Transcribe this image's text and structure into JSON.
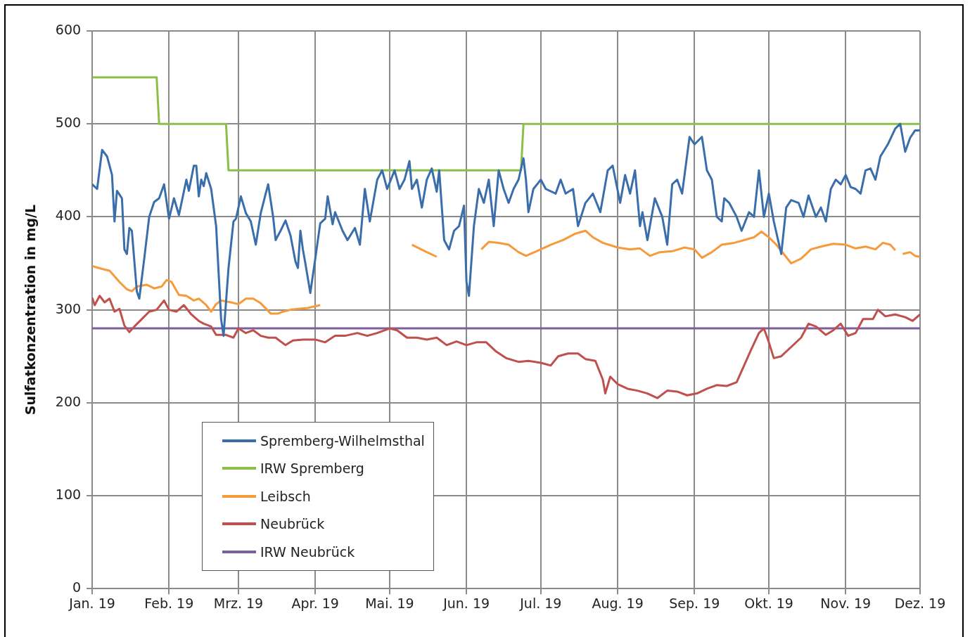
{
  "chart_data": {
    "type": "line",
    "ylabel": "Sulfatkonzentration in mg/L",
    "xlim": [
      "2019-01-01",
      "2019-12-01"
    ],
    "xticks": [
      {
        "value": "2019-01-01",
        "label": "Jan. 19"
      },
      {
        "value": "2019-02-01",
        "label": "Feb. 19"
      },
      {
        "value": "2019-03-01",
        "label": "Mrz. 19"
      },
      {
        "value": "2019-04-01",
        "label": "Apr. 19"
      },
      {
        "value": "2019-05-01",
        "label": "Mai. 19"
      },
      {
        "value": "2019-06-01",
        "label": "Jun. 19"
      },
      {
        "value": "2019-07-01",
        "label": "Jul. 19"
      },
      {
        "value": "2019-08-01",
        "label": "Aug. 19"
      },
      {
        "value": "2019-09-01",
        "label": "Sep. 19"
      },
      {
        "value": "2019-10-01",
        "label": "Okt. 19"
      },
      {
        "value": "2019-11-01",
        "label": "Nov. 19"
      },
      {
        "value": "2019-12-01",
        "label": "Dez. 19"
      }
    ],
    "ylim": [
      0,
      600
    ],
    "yticks": [
      0,
      100,
      200,
      300,
      400,
      500,
      600
    ],
    "grid": true,
    "legend": "bottom left",
    "marker": "none",
    "line_style": "solid",
    "series": [
      {
        "name": "Spremberg-Wilhelmsthal",
        "color": "#3a6eab",
        "x": [
          "2019-01-01",
          "2019-01-03",
          "2019-01-05",
          "2019-01-07",
          "2019-01-09",
          "2019-01-10",
          "2019-01-11",
          "2019-01-13",
          "2019-01-14",
          "2019-01-15",
          "2019-01-16",
          "2019-01-17",
          "2019-01-19",
          "2019-01-20",
          "2019-01-22",
          "2019-01-24",
          "2019-01-26",
          "2019-01-28",
          "2019-01-30",
          "2019-02-01",
          "2019-02-03",
          "2019-02-05",
          "2019-02-08",
          "2019-02-09",
          "2019-02-11",
          "2019-02-12",
          "2019-02-13",
          "2019-02-14",
          "2019-02-15",
          "2019-02-16",
          "2019-02-18",
          "2019-02-20",
          "2019-02-22",
          "2019-02-23",
          "2019-02-25",
          "2019-02-27",
          "2019-02-28",
          "2019-03-02",
          "2019-03-04",
          "2019-03-06",
          "2019-03-08",
          "2019-03-10",
          "2019-03-12",
          "2019-03-13",
          "2019-03-15",
          "2019-03-16",
          "2019-03-18",
          "2019-03-20",
          "2019-03-22",
          "2019-03-24",
          "2019-03-25",
          "2019-03-26",
          "2019-03-27",
          "2019-03-28",
          "2019-03-30",
          "2019-04-01",
          "2019-04-03",
          "2019-04-05",
          "2019-04-06",
          "2019-04-08",
          "2019-04-09",
          "2019-04-12",
          "2019-04-14",
          "2019-04-17",
          "2019-04-19",
          "2019-04-21",
          "2019-04-23",
          "2019-04-26",
          "2019-04-28",
          "2019-04-30",
          "2019-05-03",
          "2019-05-05",
          "2019-05-07",
          "2019-05-09",
          "2019-05-10",
          "2019-05-12",
          "2019-05-14",
          "2019-05-16",
          "2019-05-18",
          "2019-05-20",
          "2019-05-21",
          "2019-05-23",
          "2019-05-25",
          "2019-05-27",
          "2019-05-29",
          "2019-05-31",
          "2019-06-01",
          "2019-06-02",
          "2019-06-04",
          "2019-06-06",
          "2019-06-08",
          "2019-06-10",
          "2019-06-12",
          "2019-06-14",
          "2019-06-16",
          "2019-06-18",
          "2019-06-20",
          "2019-06-22",
          "2019-06-24",
          "2019-06-25",
          "2019-06-26",
          "2019-06-28",
          "2019-07-01",
          "2019-07-03",
          "2019-07-07",
          "2019-07-09",
          "2019-07-11",
          "2019-07-14",
          "2019-07-16",
          "2019-07-19",
          "2019-07-22",
          "2019-07-25",
          "2019-07-28",
          "2019-07-30",
          "2019-08-02",
          "2019-08-04",
          "2019-08-06",
          "2019-08-08",
          "2019-08-10",
          "2019-08-11",
          "2019-08-13",
          "2019-08-16",
          "2019-08-19",
          "2019-08-21",
          "2019-08-23",
          "2019-08-25",
          "2019-08-27",
          "2019-08-30",
          "2019-09-01",
          "2019-09-04",
          "2019-09-06",
          "2019-09-08",
          "2019-09-10",
          "2019-09-12",
          "2019-09-13",
          "2019-09-15",
          "2019-09-18",
          "2019-09-20",
          "2019-09-23",
          "2019-09-25",
          "2019-09-27",
          "2019-09-29",
          "2019-10-01",
          "2019-10-03",
          "2019-10-06",
          "2019-10-08",
          "2019-10-10",
          "2019-10-13",
          "2019-10-15",
          "2019-10-17",
          "2019-10-20",
          "2019-10-22",
          "2019-10-24",
          "2019-10-26",
          "2019-10-28",
          "2019-10-30",
          "2019-11-01",
          "2019-11-03",
          "2019-11-05",
          "2019-11-07",
          "2019-11-09",
          "2019-11-11",
          "2019-11-13",
          "2019-11-15",
          "2019-11-18",
          "2019-11-21",
          "2019-11-23",
          "2019-11-25",
          "2019-11-27",
          "2019-11-29",
          "2019-12-01"
        ],
        "values": [
          435,
          430,
          472,
          465,
          445,
          395,
          428,
          420,
          365,
          360,
          388,
          385,
          320,
          312,
          355,
          400,
          416,
          420,
          435,
          398,
          420,
          402,
          440,
          428,
          455,
          455,
          422,
          440,
          433,
          447,
          430,
          390,
          290,
          272,
          345,
          395,
          398,
          422,
          404,
          395,
          370,
          404,
          425,
          435,
          400,
          375,
          385,
          396,
          380,
          352,
          345,
          385,
          365,
          350,
          318,
          355,
          393,
          398,
          422,
          392,
          405,
          385,
          375,
          388,
          370,
          430,
          395,
          440,
          450,
          430,
          450,
          430,
          440,
          460,
          430,
          440,
          410,
          440,
          452,
          427,
          450,
          375,
          365,
          385,
          390,
          412,
          330,
          315,
          390,
          430,
          415,
          440,
          390,
          450,
          430,
          415,
          430,
          440,
          463,
          440,
          405,
          430,
          440,
          430,
          425,
          440,
          425,
          430,
          390,
          415,
          425,
          405,
          450,
          455,
          415,
          445,
          425,
          450,
          390,
          405,
          375,
          420,
          400,
          370,
          435,
          440,
          425,
          486,
          478,
          486,
          450,
          440,
          400,
          395,
          420,
          415,
          400,
          385,
          405,
          400,
          450,
          400,
          425,
          395,
          360,
          410,
          418,
          415,
          400,
          423,
          400,
          410,
          395,
          430,
          440,
          435,
          445,
          432,
          430,
          425,
          450,
          452,
          440,
          465,
          478,
          495,
          500,
          470,
          485,
          493,
          493
        ]
      },
      {
        "name": "IRW Spremberg",
        "color": "#8cbf4a",
        "x": [
          "2019-01-01",
          "2019-01-27",
          "2019-01-28",
          "2019-02-24",
          "2019-02-25",
          "2019-06-23",
          "2019-06-24",
          "2019-12-01"
        ],
        "values": [
          550,
          550,
          500,
          500,
          450,
          450,
          500,
          500
        ]
      },
      {
        "name": "Leibsch",
        "color": "#f79a3c",
        "x": [
          "2019-01-01",
          "2019-01-05",
          "2019-01-08",
          "2019-01-12",
          "2019-01-15",
          "2019-01-17",
          "2019-01-19",
          "2019-01-23",
          "2019-01-26",
          "2019-01-29",
          "2019-01-31",
          "2019-02-02",
          "2019-02-05",
          "2019-02-08",
          "2019-02-11",
          "2019-02-13",
          "2019-02-16",
          "2019-02-18",
          "2019-02-20",
          "2019-02-22",
          "2019-02-26",
          "2019-03-01",
          "2019-03-04",
          "2019-03-07",
          "2019-03-10",
          "2019-03-14",
          "2019-03-17",
          "2019-03-19",
          "2019-03-22",
          "2019-03-25",
          "2019-03-29",
          "2019-04-03",
          "2019-04-20",
          "2019-05-10",
          "2019-05-13",
          "2019-05-16",
          "2019-05-20",
          "2019-06-01",
          "2019-06-07",
          "2019-06-10",
          "2019-06-14",
          "2019-06-18",
          "2019-06-22",
          "2019-06-25",
          "2019-07-01",
          "2019-07-05",
          "2019-07-10",
          "2019-07-15",
          "2019-07-19",
          "2019-07-22",
          "2019-07-26",
          "2019-08-01",
          "2019-08-06",
          "2019-08-10",
          "2019-08-14",
          "2019-08-18",
          "2019-08-23",
          "2019-08-28",
          "2019-09-01",
          "2019-09-04",
          "2019-09-08",
          "2019-09-12",
          "2019-09-17",
          "2019-09-21",
          "2019-09-25",
          "2019-09-28",
          "2019-10-01",
          "2019-10-04",
          "2019-10-07",
          "2019-10-10",
          "2019-10-14",
          "2019-10-18",
          "2019-10-22",
          "2019-10-27",
          "2019-11-01",
          "2019-11-05",
          "2019-11-09",
          "2019-11-13",
          "2019-11-16",
          "2019-11-19",
          "2019-11-21",
          "2019-11-22",
          "2019-11-24",
          "2019-11-27",
          "2019-11-29",
          "2019-12-01"
        ],
        "values": [
          347,
          344,
          342,
          330,
          322,
          320,
          325,
          327,
          323,
          325,
          332,
          330,
          316,
          315,
          310,
          312,
          305,
          298,
          306,
          310,
          308,
          306,
          312,
          312,
          307,
          296,
          296,
          298,
          300,
          301,
          302,
          305,
          null,
          370,
          366,
          362,
          357,
          null,
          365,
          373,
          372,
          370,
          362,
          358,
          365,
          370,
          375,
          382,
          385,
          378,
          372,
          367,
          365,
          366,
          358,
          362,
          363,
          367,
          365,
          356,
          362,
          370,
          372,
          375,
          378,
          384,
          378,
          370,
          360,
          350,
          355,
          365,
          368,
          371,
          370,
          366,
          368,
          365,
          372,
          370,
          364,
          null,
          360,
          362,
          358,
          357
        ]
      },
      {
        "name": "Neubrück",
        "color": "#c0504d",
        "x": [
          "2019-01-01",
          "2019-01-02",
          "2019-01-04",
          "2019-01-06",
          "2019-01-08",
          "2019-01-10",
          "2019-01-12",
          "2019-01-14",
          "2019-01-16",
          "2019-01-18",
          "2019-01-21",
          "2019-01-24",
          "2019-01-27",
          "2019-01-30",
          "2019-02-01",
          "2019-02-04",
          "2019-02-07",
          "2019-02-10",
          "2019-02-13",
          "2019-02-15",
          "2019-02-18",
          "2019-02-20",
          "2019-02-24",
          "2019-02-27",
          "2019-03-01",
          "2019-03-04",
          "2019-03-07",
          "2019-03-10",
          "2019-03-13",
          "2019-03-16",
          "2019-03-20",
          "2019-03-23",
          "2019-03-27",
          "2019-04-01",
          "2019-04-05",
          "2019-04-09",
          "2019-04-13",
          "2019-04-18",
          "2019-04-22",
          "2019-04-26",
          "2019-05-01",
          "2019-05-04",
          "2019-05-08",
          "2019-05-12",
          "2019-05-16",
          "2019-05-20",
          "2019-05-24",
          "2019-05-28",
          "2019-06-01",
          "2019-06-05",
          "2019-06-09",
          "2019-06-13",
          "2019-06-17",
          "2019-06-22",
          "2019-06-26",
          "2019-07-01",
          "2019-07-05",
          "2019-07-08",
          "2019-07-12",
          "2019-07-16",
          "2019-07-19",
          "2019-07-23",
          "2019-07-26",
          "2019-07-27",
          "2019-07-29",
          "2019-08-01",
          "2019-08-05",
          "2019-08-09",
          "2019-08-13",
          "2019-08-17",
          "2019-08-21",
          "2019-08-25",
          "2019-08-29",
          "2019-09-02",
          "2019-09-06",
          "2019-09-10",
          "2019-09-14",
          "2019-09-18",
          "2019-09-21",
          "2019-09-24",
          "2019-09-27",
          "2019-09-29",
          "2019-10-01",
          "2019-10-03",
          "2019-10-06",
          "2019-10-10",
          "2019-10-14",
          "2019-10-17",
          "2019-10-20",
          "2019-10-24",
          "2019-10-27",
          "2019-10-30",
          "2019-11-02",
          "2019-11-05",
          "2019-11-08",
          "2019-11-12",
          "2019-11-14",
          "2019-11-17",
          "2019-11-21",
          "2019-11-25",
          "2019-11-28",
          "2019-12-01"
        ],
        "values": [
          313,
          305,
          315,
          308,
          312,
          298,
          301,
          283,
          276,
          282,
          290,
          298,
          300,
          310,
          300,
          298,
          305,
          295,
          288,
          285,
          282,
          273,
          273,
          270,
          280,
          275,
          278,
          272,
          270,
          270,
          262,
          267,
          268,
          268,
          265,
          272,
          272,
          275,
          272,
          275,
          280,
          278,
          270,
          270,
          268,
          270,
          262,
          266,
          262,
          265,
          265,
          255,
          248,
          244,
          245,
          243,
          240,
          250,
          253,
          253,
          247,
          245,
          225,
          210,
          228,
          220,
          215,
          213,
          210,
          205,
          213,
          212,
          208,
          210,
          215,
          219,
          218,
          222,
          240,
          258,
          275,
          280,
          265,
          248,
          250,
          260,
          270,
          285,
          282,
          273,
          278,
          285,
          272,
          275,
          290,
          290,
          300,
          293,
          295,
          292,
          288,
          295
        ]
      },
      {
        "name": "IRW Neubrück",
        "color": "#7d5fa0",
        "x": [
          "2019-01-01",
          "2019-12-01"
        ],
        "values": [
          280,
          280
        ]
      }
    ]
  }
}
